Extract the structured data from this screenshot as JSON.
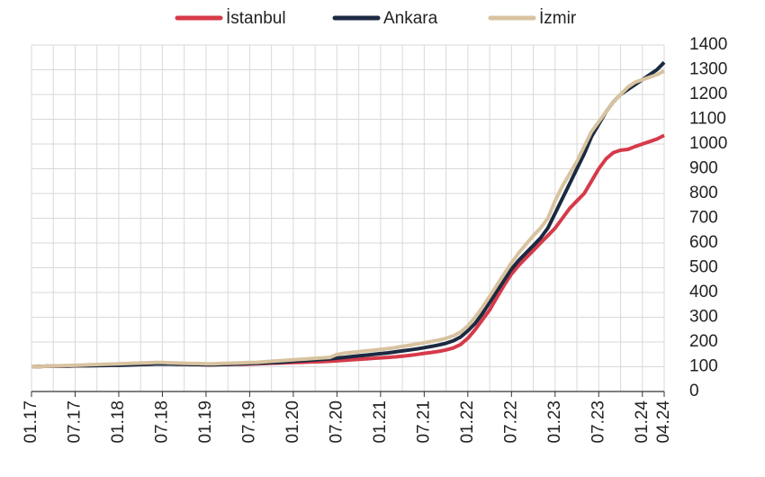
{
  "chart_data": {
    "type": "line",
    "categories": [
      "01.17",
      null,
      null,
      null,
      null,
      null,
      "07.17",
      null,
      null,
      null,
      null,
      null,
      "01.18",
      null,
      null,
      null,
      null,
      null,
      "07.18",
      null,
      null,
      null,
      null,
      null,
      "01.19",
      null,
      null,
      null,
      null,
      null,
      "07.19",
      null,
      null,
      null,
      null,
      null,
      "01.20",
      null,
      null,
      null,
      null,
      null,
      "07.20",
      null,
      null,
      null,
      null,
      null,
      "01.21",
      null,
      null,
      null,
      null,
      null,
      "07.21",
      null,
      null,
      null,
      null,
      null,
      "01.22",
      null,
      null,
      null,
      null,
      null,
      "07.22",
      null,
      null,
      null,
      null,
      null,
      "01.23",
      null,
      null,
      null,
      null,
      null,
      "07.23",
      null,
      null,
      null,
      null,
      null,
      "01.24",
      null,
      null,
      "04.24"
    ],
    "series": [
      {
        "name": "İstanbul",
        "color": "#d63a4a",
        "values": [
          100,
          101,
          102,
          102,
          103,
          103,
          104,
          104,
          105,
          105,
          106,
          106,
          107,
          108,
          108,
          109,
          110,
          111,
          112,
          112,
          111,
          110,
          110,
          110,
          108,
          108,
          109,
          109,
          110,
          110,
          111,
          112,
          113,
          114,
          115,
          116,
          117,
          118,
          119,
          120,
          121,
          122,
          124,
          126,
          128,
          130,
          132,
          134,
          136,
          138,
          140,
          143,
          146,
          150,
          154,
          158,
          162,
          168,
          176,
          190,
          215,
          250,
          290,
          330,
          380,
          430,
          475,
          510,
          540,
          570,
          600,
          630,
          660,
          700,
          740,
          770,
          800,
          850,
          900,
          940,
          965,
          975,
          978,
          990,
          1000,
          1010,
          1020,
          1035
        ]
      },
      {
        "name": "Ankara",
        "color": "#1b2a41",
        "values": [
          100,
          101,
          102,
          102,
          103,
          103,
          104,
          104,
          104,
          105,
          105,
          106,
          106,
          107,
          108,
          109,
          110,
          111,
          111,
          111,
          110,
          110,
          109,
          109,
          108,
          108,
          109,
          110,
          111,
          112,
          113,
          114,
          115,
          117,
          118,
          120,
          122,
          124,
          126,
          128,
          130,
          132,
          135,
          138,
          141,
          144,
          147,
          150,
          153,
          156,
          160,
          164,
          168,
          172,
          177,
          182,
          188,
          195,
          205,
          220,
          245,
          275,
          315,
          360,
          405,
          450,
          495,
          530,
          560,
          590,
          620,
          660,
          720,
          780,
          840,
          900,
          960,
          1030,
          1080,
          1130,
          1170,
          1200,
          1220,
          1240,
          1260,
          1280,
          1300,
          1330
        ]
      },
      {
        "name": "İzmir",
        "color": "#d8c3a0",
        "values": [
          100,
          101,
          102,
          103,
          104,
          105,
          106,
          107,
          108,
          109,
          110,
          111,
          112,
          113,
          114,
          115,
          116,
          117,
          117,
          116,
          115,
          114,
          113,
          113,
          112,
          112,
          113,
          114,
          115,
          116,
          117,
          118,
          120,
          122,
          124,
          126,
          128,
          130,
          132,
          134,
          136,
          138,
          150,
          155,
          158,
          161,
          164,
          167,
          170,
          173,
          177,
          182,
          187,
          192,
          197,
          202,
          208,
          215,
          225,
          240,
          265,
          300,
          340,
          385,
          430,
          475,
          520,
          560,
          595,
          630,
          660,
          700,
          770,
          830,
          880,
          930,
          990,
          1050,
          1090,
          1130,
          1170,
          1200,
          1230,
          1250,
          1260,
          1270,
          1280,
          1295
        ]
      }
    ],
    "ylim": [
      0,
      1400
    ],
    "yticks": [
      0,
      100,
      200,
      300,
      400,
      500,
      600,
      700,
      800,
      900,
      1000,
      1100,
      1200,
      1300,
      1400
    ],
    "grid": true
  }
}
